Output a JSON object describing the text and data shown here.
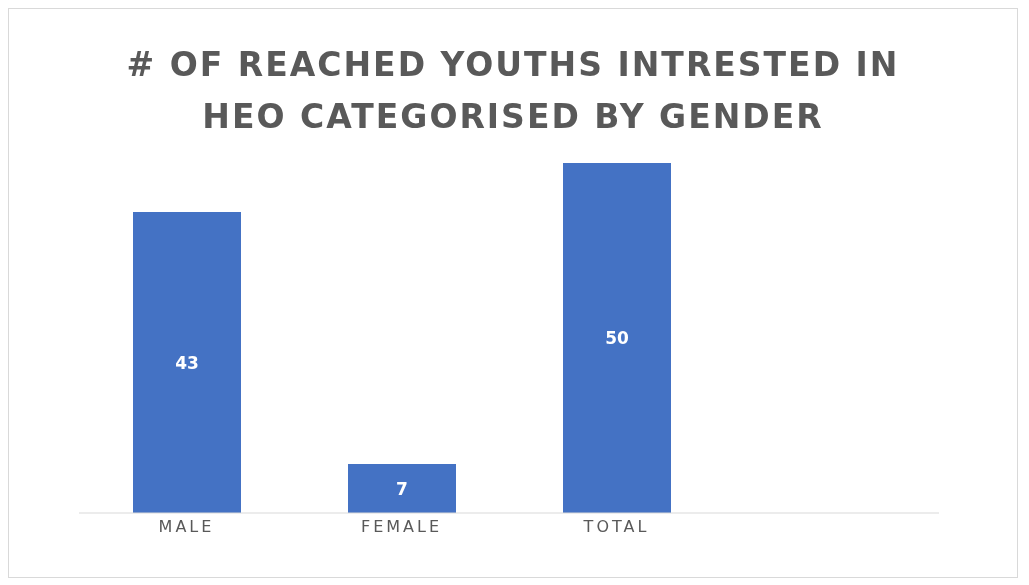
{
  "chart_data": {
    "type": "bar",
    "title": "# OF REACHED YOUTHS INTRESTED IN HEO CATEGORISED BY GENDER",
    "categories": [
      "MALE",
      "FEMALE",
      "TOTAL",
      null
    ],
    "values": [
      43,
      7,
      50,
      null
    ],
    "color": "#4472c4",
    "data_labels": true
  }
}
